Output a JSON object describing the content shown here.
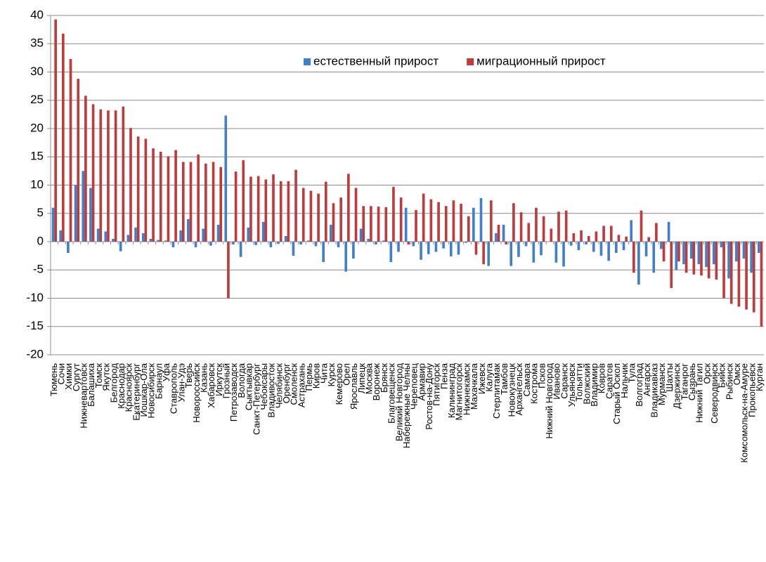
{
  "chart_data": {
    "type": "bar",
    "grid": true,
    "legend": "top-right",
    "ylim": [
      -20,
      40
    ],
    "yticks": [
      -20,
      -15,
      -10,
      -5,
      0,
      5,
      10,
      15,
      20,
      25,
      30,
      35,
      40
    ],
    "categories": [
      "Тюмень",
      "Сочи",
      "Химки",
      "Сургут",
      "Нижневартовск",
      "Балашиха",
      "Томск",
      "Якутск",
      "Белгород",
      "Краснодар",
      "Красноярск",
      "Екатеринбург",
      "Йошкар-Ола",
      "Новосибирск",
      "Барнаул",
      "Уфа",
      "Ставрополь",
      "Улан-Удэ",
      "Тверь",
      "Новороссийск",
      "Казань",
      "Хабаровск",
      "Иркутск",
      "Грозный",
      "Петрозаводск",
      "Вологда",
      "Сыктывкар",
      "Санкт-Петербург",
      "Чебоксары",
      "Владивосток",
      "Челябинск",
      "Оренбург",
      "Смоленск",
      "Астрахань",
      "Пермь",
      "Киров",
      "Чита",
      "Курск",
      "Кемерово",
      "Орел",
      "Ярославль",
      "Липецк",
      "Москва",
      "Воронеж",
      "Брянск",
      "Благовещенск",
      "Великий Новгород",
      "Набережные Челны",
      "Череповец",
      "Армавир",
      "Ростов-на-Дону",
      "Пятигорск",
      "Пенза",
      "Калининград",
      "Магнитогорск",
      "Нижнекамск",
      "Махачкала",
      "Ижевск",
      "Калуга",
      "Стерлитамак",
      "Тамбов",
      "Новокузнецк",
      "Архангельск",
      "Самара",
      "Кострома",
      "Псков",
      "Нижний Новгород",
      "Иваново",
      "Саранск",
      "Ульяновск",
      "Тольятти",
      "Волжский",
      "Владимир",
      "Ковров",
      "Саратов",
      "Старый Оскол",
      "Нальчик",
      "Тула",
      "Волгоград",
      "Ангарск",
      "Владикавказ",
      "Мурманск",
      "Шахты",
      "Дзержинск",
      "Таганрог",
      "Сызрань",
      "Нижний Тагил",
      "Орск",
      "Северодвинск",
      "Бийск",
      "Рыбинск",
      "Омск",
      "Комсомольск-на-Амуре",
      "Прокопьевск",
      "Курган"
    ],
    "series": [
      {
        "name": "естественный прирост",
        "color": "#3f7fcc",
        "values": [
          6,
          2,
          -2,
          10,
          12.5,
          9.5,
          2.3,
          1.8,
          0.5,
          -1.7,
          1.2,
          2.5,
          1.5,
          0.5,
          0.3,
          0.2,
          -1,
          2,
          4,
          -1,
          2.3,
          -0.7,
          3,
          22.3,
          -0.5,
          -2.7,
          2.5,
          -0.6,
          3.5,
          -1,
          -0.4,
          1,
          -2.5,
          -0.5,
          0.2,
          -0.8,
          -3.6,
          3,
          -1,
          -5.3,
          -3,
          2.3,
          0.5,
          -0.5,
          0.2,
          -3.6,
          -1.8,
          6,
          -0.8,
          -3.2,
          -2.2,
          -1.8,
          -1.2,
          -2.6,
          -2.3,
          -0.2,
          6,
          7.7,
          -4.3,
          1.5,
          3,
          -4.3,
          -2.7,
          -0.8,
          -3.7,
          -2.4,
          0,
          -3.7,
          -4.4,
          -0.7,
          -1.5,
          -0.5,
          -1.8,
          -2.5,
          -3.4,
          -2,
          -1.5,
          3.8,
          -7.6,
          -2.6,
          -5.5,
          -1.3,
          3.5,
          -5,
          -4,
          -3,
          -4,
          -4.5,
          -4,
          -1,
          -6.5,
          -3.5,
          -3,
          -5.5,
          -2
        ]
      },
      {
        "name": "миграционный прирост",
        "color": "#c0393b",
        "values": [
          39.3,
          36.8,
          32.3,
          28.8,
          25.8,
          24.3,
          23.4,
          23.2,
          23.2,
          23.9,
          20.1,
          18.6,
          18.2,
          16.5,
          15.9,
          15.1,
          16.2,
          14.1,
          14.1,
          15.4,
          13.8,
          14.1,
          13.2,
          -10,
          12.4,
          14.4,
          11.5,
          11.6,
          11,
          11.9,
          10.7,
          10.7,
          12.7,
          9.5,
          9,
          8.5,
          10.6,
          6.8,
          7.8,
          12,
          9.5,
          6.3,
          6.3,
          6.2,
          6.1,
          9.7,
          7.8,
          -0.5,
          5.6,
          8.5,
          7.5,
          7,
          6.3,
          7.3,
          6.7,
          4.5,
          -2.3,
          -4,
          7.3,
          3,
          -0.5,
          6.8,
          5.2,
          3.3,
          6,
          4.5,
          2.3,
          5.3,
          5.5,
          1.5,
          2,
          1,
          1.8,
          2.8,
          2.8,
          1.2,
          0.9,
          -5.5,
          5.5,
          0.8,
          3.3,
          -3.5,
          -8.2,
          -3.5,
          -5.5,
          -5.8,
          -6,
          -6.5,
          -6.7,
          -10,
          -11,
          -11.5,
          -12,
          -12.5,
          -15
        ]
      }
    ]
  }
}
